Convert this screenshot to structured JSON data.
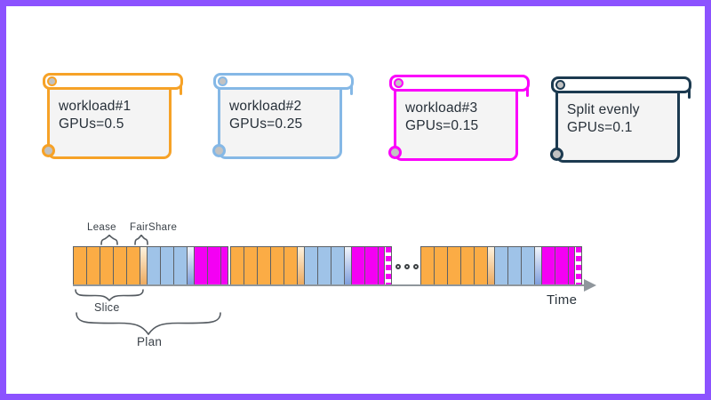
{
  "frame": {
    "border_color": "#8C52FF",
    "background": "#ffffff"
  },
  "workload_cards": [
    {
      "title": "workload#1",
      "gpus": "GPUs=0.5",
      "color": "#F6A227"
    },
    {
      "title": "workload#2",
      "gpus": "GPUs=0.25",
      "color": "#85B8E6"
    },
    {
      "title": "workload#3",
      "gpus": "GPUs=0.15",
      "color": "#FB00FB"
    },
    {
      "title": "Split evenly",
      "gpus": "GPUs=0.1",
      "color": "#1C3A50"
    }
  ],
  "timeline": {
    "labels": {
      "lease": "Lease",
      "fairshare": "FairShare",
      "slice": "Slice",
      "plan": "Plan",
      "time": "Time"
    },
    "colors": {
      "workload1_cell": "#FBAC45",
      "workload2_cell": "#9FC3E8",
      "workload3_cell": "#F400F4",
      "fairshare_gradient_top": "#FDF2DE",
      "fairshare_gradient_bottom": "#EDA95C",
      "transition_gradient_top": "#F2F6FC",
      "transition_gradient_bottom": "#7C9CDB",
      "cell_border": "#5d6166",
      "axis": "#8f969c"
    },
    "segments": [
      {
        "name": "workload1-slice",
        "count": 5,
        "width": 15,
        "color": "#FBAC45"
      },
      {
        "name": "fairshare",
        "count": 1,
        "width": 8,
        "gradient": [
          "#FDF2DE",
          "#EDA95C"
        ]
      },
      {
        "name": "workload2-slice",
        "count": 3,
        "width": 15,
        "color": "#9FC3E8"
      },
      {
        "name": "fairshare",
        "count": 1,
        "width": 8,
        "gradient": [
          "#F2F6FC",
          "#7C9CDB"
        ]
      },
      {
        "name": "workload3-slice",
        "count": 2,
        "width": 15,
        "color": "#F400F4"
      },
      {
        "name": "workload3-slice",
        "count": 1,
        "width": 7,
        "color": "#F400F4"
      }
    ],
    "groups": [
      {
        "dashed_end": false
      },
      {
        "dashed_end": true
      },
      {
        "dashed_end": true
      }
    ]
  }
}
